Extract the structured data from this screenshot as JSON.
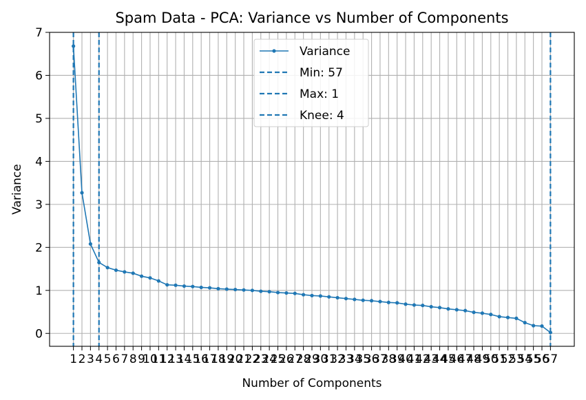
{
  "chart_data": {
    "type": "line",
    "title": "Spam Data - PCA: Variance vs Number of Components",
    "xlabel": "Number of Components",
    "ylabel": "Variance",
    "xlim": [
      -1.8,
      59.8
    ],
    "ylim": [
      -0.3,
      7
    ],
    "yticks": [
      0,
      1,
      2,
      3,
      4,
      5,
      6,
      7
    ],
    "x": [
      1,
      2,
      3,
      4,
      5,
      6,
      7,
      8,
      9,
      10,
      11,
      12,
      13,
      14,
      15,
      16,
      17,
      18,
      19,
      20,
      21,
      22,
      23,
      24,
      25,
      26,
      27,
      28,
      29,
      30,
      31,
      32,
      33,
      34,
      35,
      36,
      37,
      38,
      39,
      40,
      41,
      42,
      43,
      44,
      45,
      46,
      47,
      48,
      49,
      50,
      51,
      52,
      53,
      54,
      55,
      56,
      57
    ],
    "series": [
      {
        "name": "Variance",
        "color": "#1f77b4",
        "values": [
          6.68,
          3.27,
          2.08,
          1.65,
          1.53,
          1.47,
          1.43,
          1.4,
          1.33,
          1.29,
          1.22,
          1.13,
          1.12,
          1.1,
          1.09,
          1.07,
          1.06,
          1.04,
          1.03,
          1.02,
          1.01,
          1.0,
          0.98,
          0.97,
          0.95,
          0.94,
          0.93,
          0.9,
          0.88,
          0.87,
          0.85,
          0.83,
          0.81,
          0.79,
          0.77,
          0.76,
          0.74,
          0.72,
          0.71,
          0.68,
          0.66,
          0.65,
          0.62,
          0.6,
          0.57,
          0.55,
          0.53,
          0.49,
          0.47,
          0.44,
          0.39,
          0.37,
          0.35,
          0.25,
          0.18,
          0.17,
          0.02
        ]
      }
    ],
    "vlines": [
      {
        "label": "Min: 57",
        "x": 57,
        "color": "#1f77b4",
        "style": "dashed"
      },
      {
        "label": "Max: 1",
        "x": 1,
        "color": "#1f77b4",
        "style": "dashed"
      },
      {
        "label": "Knee: 4",
        "x": 4,
        "color": "#1f77b4",
        "style": "dashed"
      }
    ],
    "grid": true,
    "legend_position": "top-center"
  }
}
